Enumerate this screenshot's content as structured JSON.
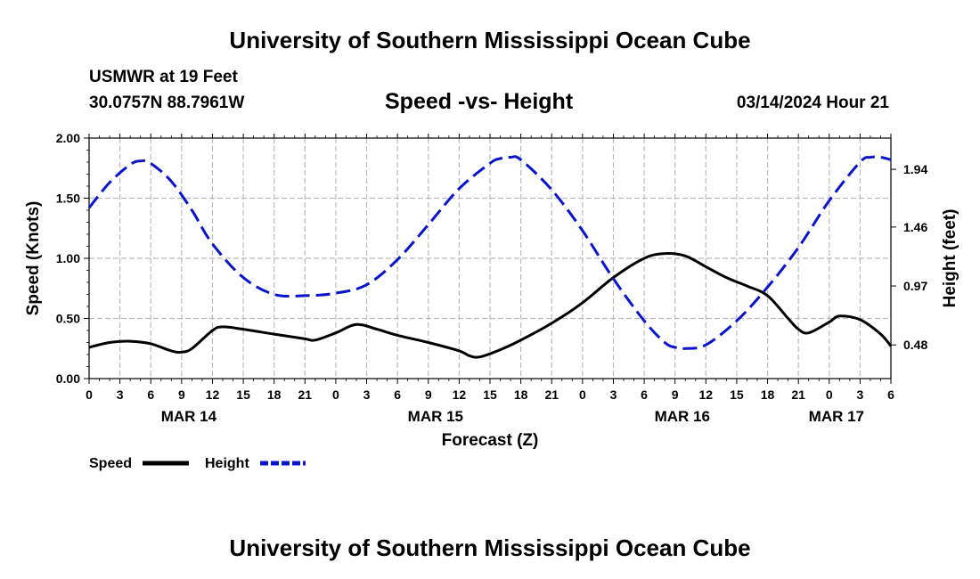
{
  "header": {
    "title": "University of Southern Mississippi Ocean Cube",
    "station": "USMWR at 19 Feet",
    "coords": "30.0757N  88.7961W",
    "chart_title": "Speed -vs- Height",
    "datetime": "03/14/2024 Hour 21"
  },
  "footer": {
    "title": "University of Southern Mississippi Ocean Cube"
  },
  "chart_data": {
    "type": "line",
    "title": "Speed -vs- Height",
    "xlabel": "Forecast (Z)",
    "ylabel": "Speed (Knots)",
    "y2label": "Height (feet)",
    "x_unit": "hours from MAR 14 00Z",
    "xlim": [
      0,
      78
    ],
    "ylim": [
      0,
      2.0
    ],
    "y2lim": [
      0.2,
      2.2
    ],
    "grid": true,
    "legend_position": "bottom-left",
    "x_ticks": [
      {
        "x": 0,
        "label": "0"
      },
      {
        "x": 3,
        "label": "3"
      },
      {
        "x": 6,
        "label": "6"
      },
      {
        "x": 9,
        "label": "9"
      },
      {
        "x": 12,
        "label": "12"
      },
      {
        "x": 15,
        "label": "15"
      },
      {
        "x": 18,
        "label": "18"
      },
      {
        "x": 21,
        "label": "21"
      },
      {
        "x": 24,
        "label": "0"
      },
      {
        "x": 27,
        "label": "3"
      },
      {
        "x": 30,
        "label": "6"
      },
      {
        "x": 33,
        "label": "9"
      },
      {
        "x": 36,
        "label": "12"
      },
      {
        "x": 39,
        "label": "15"
      },
      {
        "x": 42,
        "label": "18"
      },
      {
        "x": 45,
        "label": "21"
      },
      {
        "x": 48,
        "label": "0"
      },
      {
        "x": 51,
        "label": "3"
      },
      {
        "x": 54,
        "label": "6"
      },
      {
        "x": 57,
        "label": "9"
      },
      {
        "x": 60,
        "label": "12"
      },
      {
        "x": 63,
        "label": "15"
      },
      {
        "x": 66,
        "label": "18"
      },
      {
        "x": 69,
        "label": "21"
      },
      {
        "x": 72,
        "label": "0"
      },
      {
        "x": 75,
        "label": "3"
      },
      {
        "x": 78,
        "label": "6"
      }
    ],
    "date_labels": [
      {
        "x": 9.7,
        "label": "MAR 14"
      },
      {
        "x": 33.7,
        "label": "MAR 15"
      },
      {
        "x": 57.7,
        "label": "MAR 16"
      },
      {
        "x": 72.7,
        "label": "MAR 17"
      }
    ],
    "y_ticks": [
      "0.00",
      "0.50",
      "1.00",
      "1.50",
      "2.00"
    ],
    "y_tick_values": [
      0,
      0.5,
      1.0,
      1.5,
      2.0
    ],
    "y2_ticks": [
      "0.48",
      "0.97",
      "1.46",
      "1.94"
    ],
    "y2_tick_values": [
      0.48,
      0.97,
      1.46,
      1.94
    ],
    "series": [
      {
        "name": "Speed",
        "axis": "left",
        "color": "#000000",
        "dash": "solid",
        "x": [
          0,
          2,
          4,
          6,
          8,
          9,
          10,
          12,
          13,
          15,
          18,
          21,
          22,
          24,
          26,
          28,
          30,
          33,
          36,
          37,
          38,
          40,
          42,
          45,
          48,
          51,
          54,
          56,
          58,
          60,
          62,
          64,
          66,
          68,
          69,
          70,
          72,
          73,
          75,
          77,
          78
        ],
        "values": [
          0.26,
          0.3,
          0.31,
          0.29,
          0.23,
          0.22,
          0.25,
          0.4,
          0.43,
          0.41,
          0.37,
          0.33,
          0.32,
          0.38,
          0.45,
          0.41,
          0.36,
          0.3,
          0.23,
          0.19,
          0.18,
          0.24,
          0.32,
          0.46,
          0.63,
          0.84,
          1.0,
          1.04,
          1.02,
          0.93,
          0.84,
          0.77,
          0.69,
          0.5,
          0.41,
          0.38,
          0.47,
          0.52,
          0.49,
          0.37,
          0.27
        ]
      },
      {
        "name": "Height",
        "axis": "right",
        "color": "#0a14cc",
        "dash": "dashed",
        "x": [
          0,
          2,
          4,
          5,
          6,
          8,
          10,
          12,
          15,
          18,
          21,
          24,
          27,
          30,
          33,
          36,
          39,
          40,
          41,
          42,
          45,
          48,
          51,
          54,
          56,
          57,
          58,
          60,
          63,
          66,
          69,
          72,
          75,
          76,
          77,
          78
        ],
        "values": [
          1.62,
          1.83,
          1.98,
          2.01,
          1.99,
          1.84,
          1.6,
          1.32,
          1.04,
          0.9,
          0.89,
          0.91,
          0.98,
          1.19,
          1.48,
          1.78,
          1.99,
          2.03,
          2.04,
          2.02,
          1.77,
          1.43,
          1.03,
          0.68,
          0.5,
          0.46,
          0.45,
          0.48,
          0.68,
          0.96,
          1.29,
          1.68,
          2.0,
          2.04,
          2.04,
          2.02
        ]
      }
    ]
  },
  "legend": {
    "speed_label": "Speed",
    "height_label": "Height"
  }
}
